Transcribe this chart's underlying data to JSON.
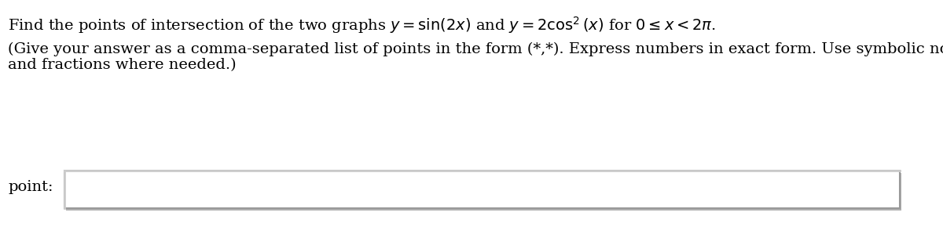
{
  "line1": "Find the points of intersection of the two graphs $y = \\sin(2x)$ and $y = 2\\cos^2(x)$ for $0 \\leq x < 2\\pi$.",
  "line2": "(Give your answer as a comma-separated list of points in the form (*,*). Express numbers in exact form. Use symbolic notation",
  "line3": "and fractions where needed.)",
  "label": "point:",
  "bg_color": "#ffffff",
  "text_color": "#000000",
  "box_edge_color": "#999999",
  "box_fill_color": "#ffffff",
  "font_size_main": 14,
  "font_size_sub": 14,
  "label_font_size": 14,
  "fig_width": 12.0,
  "fig_height": 2.99,
  "dpi": 100
}
